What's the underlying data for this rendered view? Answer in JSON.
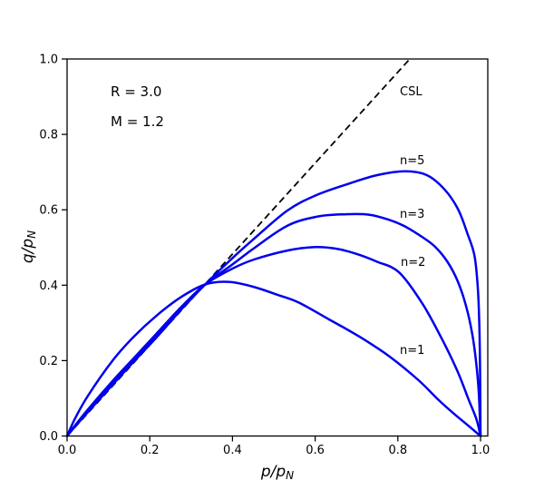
{
  "chart_data": {
    "type": "line",
    "title": "",
    "xlabel": "p/p_N",
    "xlabel_main": "p/p",
    "xlabel_sub": "N",
    "ylabel": "q/p_N",
    "ylabel_main": "q/p",
    "ylabel_sub": "N",
    "xlim": [
      0.0,
      1.018
    ],
    "ylim": [
      0.0,
      1.0
    ],
    "grid": false,
    "x_tick_values": [
      0.0,
      0.2,
      0.4,
      0.6,
      0.8,
      1.0
    ],
    "x_tick_labels": [
      "0.0",
      "0.2",
      "0.4",
      "0.6",
      "0.8",
      "1.0"
    ],
    "y_tick_values": [
      0.0,
      0.2,
      0.4,
      0.6,
      0.8,
      1.0
    ],
    "y_tick_labels": [
      "0.0",
      "0.2",
      "0.4",
      "0.6",
      "0.8",
      "1.0"
    ],
    "annotations": {
      "r": "R = 3.0",
      "m": "M = 1.2"
    },
    "colors": {
      "curve": "#0000ee",
      "reference_line": "#000000",
      "text": "#000000",
      "background": "#ffffff"
    },
    "reference_line": {
      "label": "CSL",
      "slope": 1.2,
      "intercept": 0.0,
      "style": "dashed",
      "points": [
        [
          0.0,
          0.0
        ],
        [
          0.829,
          1.0
        ]
      ]
    },
    "series": [
      {
        "name": "n=1",
        "n": 1,
        "points": [
          [
            0.0,
            0.0
          ],
          [
            0.02,
            0.048
          ],
          [
            0.05,
            0.106
          ],
          [
            0.11,
            0.2
          ],
          [
            0.16,
            0.262
          ],
          [
            0.215,
            0.318
          ],
          [
            0.275,
            0.368
          ],
          [
            0.334,
            0.402
          ],
          [
            0.39,
            0.409
          ],
          [
            0.45,
            0.396
          ],
          [
            0.51,
            0.374
          ],
          [
            0.56,
            0.354
          ],
          [
            0.634,
            0.309
          ],
          [
            0.708,
            0.263
          ],
          [
            0.781,
            0.21
          ],
          [
            0.85,
            0.148
          ],
          [
            0.9,
            0.094
          ],
          [
            0.94,
            0.055
          ],
          [
            0.97,
            0.028
          ],
          [
            1.0,
            0.0
          ]
        ]
      },
      {
        "name": "n=2",
        "n": 2,
        "points": [
          [
            0.0,
            0.0
          ],
          [
            0.02,
            0.029
          ],
          [
            0.05,
            0.07
          ],
          [
            0.11,
            0.146
          ],
          [
            0.16,
            0.205
          ],
          [
            0.215,
            0.27
          ],
          [
            0.275,
            0.341
          ],
          [
            0.334,
            0.402
          ],
          [
            0.4,
            0.444
          ],
          [
            0.452,
            0.468
          ],
          [
            0.533,
            0.492
          ],
          [
            0.6,
            0.501
          ],
          [
            0.65,
            0.497
          ],
          [
            0.7,
            0.483
          ],
          [
            0.75,
            0.462
          ],
          [
            0.803,
            0.434
          ],
          [
            0.86,
            0.35
          ],
          [
            0.91,
            0.25
          ],
          [
            0.945,
            0.17
          ],
          [
            0.97,
            0.1
          ],
          [
            0.99,
            0.045
          ],
          [
            1.0,
            0.0
          ]
        ]
      },
      {
        "name": "n=3",
        "n": 3,
        "points": [
          [
            0.0,
            0.0
          ],
          [
            0.02,
            0.027
          ],
          [
            0.05,
            0.066
          ],
          [
            0.11,
            0.14
          ],
          [
            0.16,
            0.199
          ],
          [
            0.215,
            0.264
          ],
          [
            0.275,
            0.336
          ],
          [
            0.334,
            0.402
          ],
          [
            0.4,
            0.455
          ],
          [
            0.452,
            0.498
          ],
          [
            0.533,
            0.558
          ],
          [
            0.605,
            0.582
          ],
          [
            0.67,
            0.588
          ],
          [
            0.73,
            0.587
          ],
          [
            0.78,
            0.573
          ],
          [
            0.817,
            0.556
          ],
          [
            0.86,
            0.527
          ],
          [
            0.89,
            0.502
          ],
          [
            0.92,
            0.462
          ],
          [
            0.945,
            0.41
          ],
          [
            0.965,
            0.345
          ],
          [
            0.98,
            0.27
          ],
          [
            0.99,
            0.19
          ],
          [
            0.996,
            0.11
          ],
          [
            1.0,
            0.0
          ]
        ]
      },
      {
        "name": "n=5",
        "n": 5,
        "points": [
          [
            0.0,
            0.0
          ],
          [
            0.02,
            0.026
          ],
          [
            0.05,
            0.063
          ],
          [
            0.11,
            0.136
          ],
          [
            0.16,
            0.196
          ],
          [
            0.215,
            0.26
          ],
          [
            0.275,
            0.334
          ],
          [
            0.334,
            0.402
          ],
          [
            0.4,
            0.472
          ],
          [
            0.452,
            0.523
          ],
          [
            0.533,
            0.598
          ],
          [
            0.605,
            0.64
          ],
          [
            0.689,
            0.672
          ],
          [
            0.75,
            0.692
          ],
          [
            0.818,
            0.702
          ],
          [
            0.87,
            0.692
          ],
          [
            0.912,
            0.655
          ],
          [
            0.945,
            0.603
          ],
          [
            0.968,
            0.538
          ],
          [
            0.985,
            0.48
          ],
          [
            0.993,
            0.4
          ],
          [
            0.997,
            0.3
          ],
          [
            0.999,
            0.17
          ],
          [
            1.0,
            0.0
          ]
        ]
      }
    ]
  }
}
